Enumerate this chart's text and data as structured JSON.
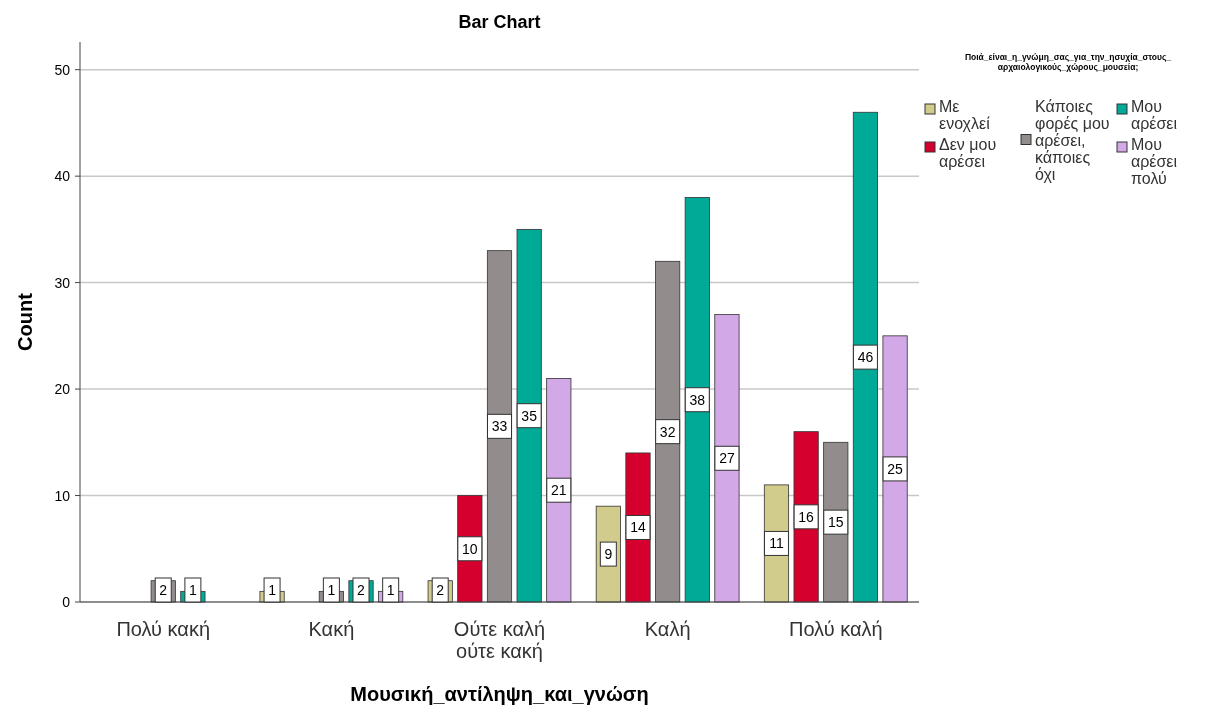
{
  "chart_data": {
    "type": "bar",
    "title": "Bar Chart",
    "xlabel": "Μουσική_αντίληψη_και_γνώση",
    "ylabel": "Count",
    "legend_title": "Ποιά_είναι_η_γνώμη_σας_για_την_ησυχία_στους_αρχαιολογικούς_χώρους_μουσεία;",
    "categories": [
      "Πολύ κακή",
      "Κακή",
      "Ούτε καλή ούτε κακή",
      "Καλή",
      "Πολύ καλή"
    ],
    "series": [
      {
        "name": "Με ενοχλεί",
        "color": "#d2cc8c",
        "values": [
          null,
          1,
          2,
          9,
          11
        ]
      },
      {
        "name": "Δεν μου αρέσει",
        "color": "#d6002f",
        "values": [
          null,
          null,
          10,
          14,
          16
        ]
      },
      {
        "name": "Κάποιες φορές μου αρέσει, κάποιες όχι",
        "color": "#928c8c",
        "values": [
          2,
          1,
          33,
          32,
          15
        ]
      },
      {
        "name": "Μου αρέσει",
        "color": "#00aa96",
        "values": [
          1,
          2,
          35,
          38,
          46
        ]
      },
      {
        "name": "Μου αρέσει πολύ",
        "color": "#d2a8e6",
        "values": [
          null,
          1,
          21,
          27,
          25
        ]
      }
    ],
    "ylim": [
      0,
      52.6
    ],
    "yticks": [
      0,
      10,
      20,
      30,
      40,
      50
    ],
    "grid": "y",
    "legend": "top right",
    "data_labels": true
  }
}
